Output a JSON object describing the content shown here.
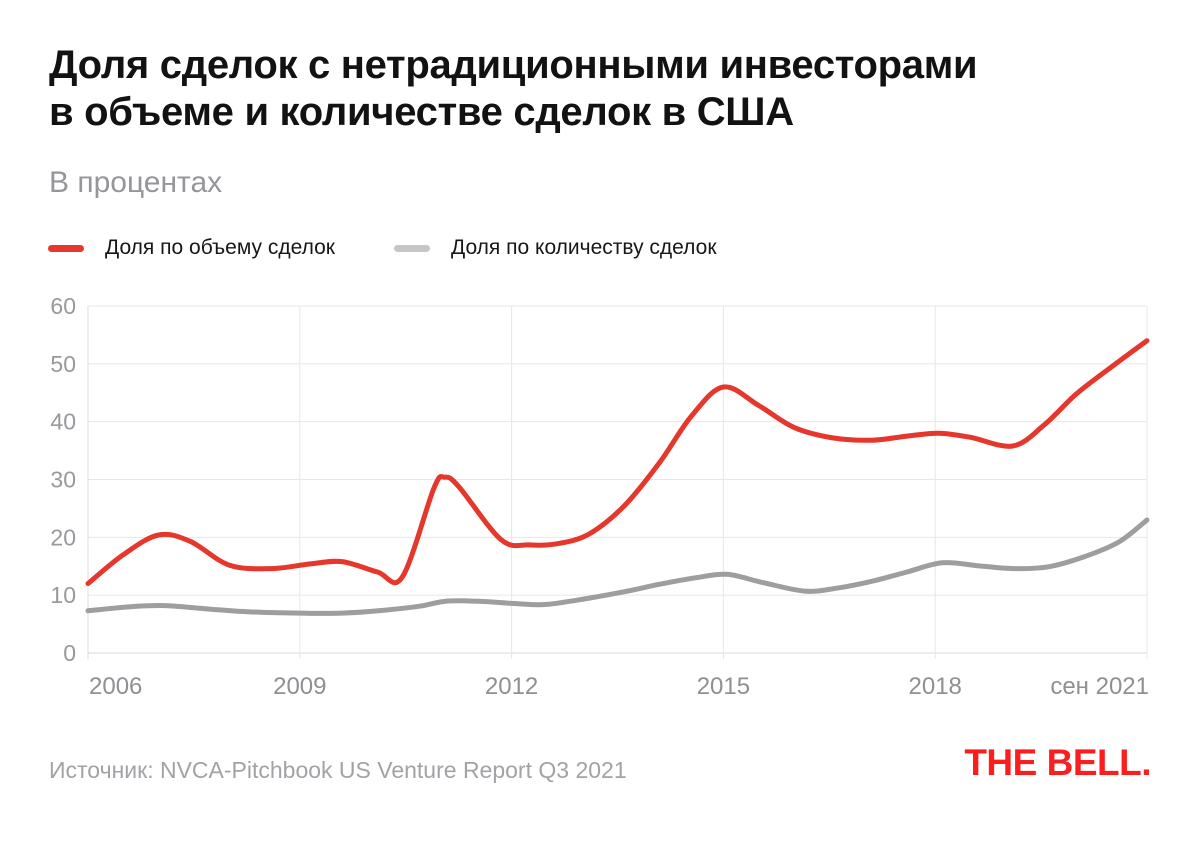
{
  "header": {
    "title_line1": "Доля сделок с нетрадиционными инвесторами",
    "title_line2": "в объеме и количестве сделок в США",
    "subtitle": "В процентах"
  },
  "legend": {
    "items": [
      {
        "label": "Доля по объему сделок",
        "swatch_color": "#e6372c"
      },
      {
        "label": "Доля по количеству сделок",
        "swatch_color": "#c6c6c6"
      }
    ]
  },
  "footer": {
    "source": "Источник: NVCA-Pitchbook US Venture Report Q3 2021",
    "logo": "THE BELL.",
    "logo_color": "#fa1e1e"
  },
  "chart_data": {
    "type": "line",
    "title": "Доля сделок с нетрадиционными инвесторами в объеме и количестве сделок в США",
    "unit_label": "В процентах",
    "xlim": [
      2006,
      2021
    ],
    "ylim": [
      0,
      60
    ],
    "grid": true,
    "legend_position": "top-left",
    "y_ticks": [
      0,
      10,
      20,
      30,
      40,
      50,
      60
    ],
    "x_ticks": [
      {
        "label": "2006",
        "x": 2006,
        "align": "start",
        "gridline": false
      },
      {
        "label": "2009",
        "x": 2009,
        "align": "middle",
        "gridline": true
      },
      {
        "label": "2012",
        "x": 2012,
        "align": "middle",
        "gridline": true
      },
      {
        "label": "2015",
        "x": 2015,
        "align": "middle",
        "gridline": true
      },
      {
        "label": "2018",
        "x": 2018,
        "align": "middle",
        "gridline": true
      },
      {
        "label": "сен 2021",
        "x": 2021,
        "align": "end",
        "gridline": false
      }
    ],
    "note": "x = 2021 holds the final data point labeled 'сен 2021' (Sep 2021)",
    "series": [
      {
        "name": "Доля по количеству сделок",
        "color": "#9e9e9e",
        "points": [
          [
            2006.0,
            7.3
          ],
          [
            2006.6,
            8.0
          ],
          [
            2007.1,
            8.2
          ],
          [
            2007.7,
            7.6
          ],
          [
            2008.3,
            7.1
          ],
          [
            2009.0,
            6.9
          ],
          [
            2009.6,
            6.9
          ],
          [
            2010.2,
            7.4
          ],
          [
            2010.7,
            8.1
          ],
          [
            2011.1,
            9.0
          ],
          [
            2011.6,
            8.9
          ],
          [
            2012.1,
            8.5
          ],
          [
            2012.5,
            8.4
          ],
          [
            2013.1,
            9.5
          ],
          [
            2013.6,
            10.6
          ],
          [
            2014.1,
            11.9
          ],
          [
            2014.6,
            13.0
          ],
          [
            2015.05,
            13.6
          ],
          [
            2015.55,
            12.2
          ],
          [
            2016.15,
            10.7
          ],
          [
            2016.6,
            11.2
          ],
          [
            2017.1,
            12.4
          ],
          [
            2017.6,
            14.0
          ],
          [
            2018.1,
            15.6
          ],
          [
            2018.6,
            15.1
          ],
          [
            2019.1,
            14.6
          ],
          [
            2019.6,
            14.9
          ],
          [
            2020.1,
            16.6
          ],
          [
            2020.6,
            19.2
          ],
          [
            2021.0,
            23.0
          ]
        ]
      },
      {
        "name": "Доля по объему сделок",
        "color": "#e6372c",
        "points": [
          [
            2006.0,
            12.0
          ],
          [
            2006.5,
            17.0
          ],
          [
            2007.0,
            20.4
          ],
          [
            2007.45,
            19.3
          ],
          [
            2008.0,
            15.2
          ],
          [
            2008.6,
            14.6
          ],
          [
            2009.15,
            15.4
          ],
          [
            2009.6,
            15.8
          ],
          [
            2010.1,
            14.0
          ],
          [
            2010.45,
            13.1
          ],
          [
            2010.9,
            28.5
          ],
          [
            2011.05,
            30.4
          ],
          [
            2011.25,
            28.8
          ],
          [
            2011.85,
            19.6
          ],
          [
            2012.25,
            18.7
          ],
          [
            2012.65,
            18.9
          ],
          [
            2013.1,
            20.6
          ],
          [
            2013.6,
            25.5
          ],
          [
            2014.1,
            33.0
          ],
          [
            2014.55,
            41.0
          ],
          [
            2015.0,
            46.0
          ],
          [
            2015.5,
            42.8
          ],
          [
            2016.0,
            39.0
          ],
          [
            2016.55,
            37.2
          ],
          [
            2017.1,
            36.8
          ],
          [
            2017.6,
            37.5
          ],
          [
            2018.05,
            38.0
          ],
          [
            2018.5,
            37.3
          ],
          [
            2019.1,
            35.8
          ],
          [
            2019.55,
            39.5
          ],
          [
            2020.0,
            44.8
          ],
          [
            2020.5,
            49.5
          ],
          [
            2021.0,
            54.0
          ]
        ]
      }
    ]
  }
}
